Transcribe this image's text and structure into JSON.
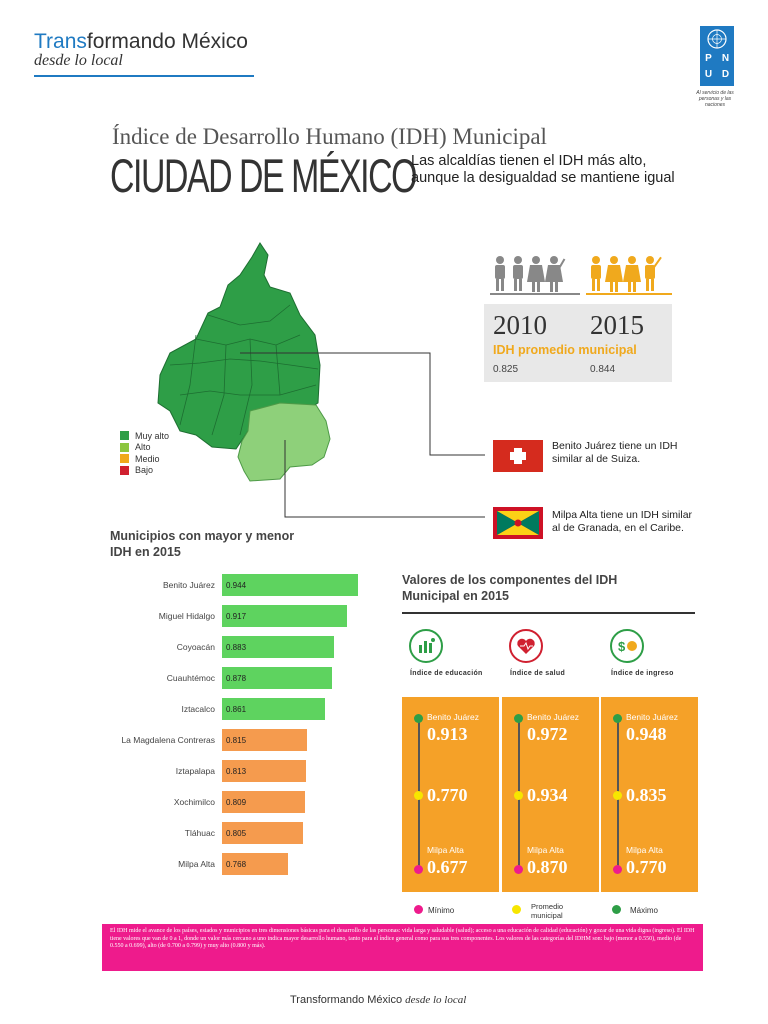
{
  "header": {
    "brand_prefix": "Trans",
    "brand_rest": "formando México",
    "brand_sub": "desde lo local",
    "pnud_letters": [
      "P",
      "N",
      "U",
      "D"
    ],
    "pnud_tagline": "Al servicio de las personas y las naciones"
  },
  "title": {
    "small": "Índice de Desarrollo Humano (IDH) Municipal",
    "big": "CIUDAD DE MÉXICO",
    "headline": "Las alcaldías tienen el IDH más alto, aunque la desigualdad se mantiene igual"
  },
  "legend": [
    {
      "label": "Muy alto",
      "color": "#2e9e47"
    },
    {
      "label": "Alto",
      "color": "#8cc63f"
    },
    {
      "label": "Medio",
      "color": "#f0a91d"
    },
    {
      "label": "Bajo",
      "color": "#d02030"
    }
  ],
  "idh_summary": {
    "year_2010": "2010",
    "year_2015": "2015",
    "label": "IDH promedio municipal",
    "value_2010": "0.825",
    "value_2015": "0.844"
  },
  "flags": {
    "suiza_note": "Benito Juárez tiene un IDH similar al de Suiza.",
    "granada_note": "Milpa Alta tiene un IDH similar al de Granada, en el Caribe."
  },
  "municipios": {
    "title": "Municipios con mayor y menor IDH en 2015",
    "rows": [
      {
        "name": "Benito Juárez",
        "value": "0.944",
        "color": "#5ed35f"
      },
      {
        "name": "Miguel Hidalgo",
        "value": "0.917",
        "color": "#5ed35f"
      },
      {
        "name": "Coyoacán",
        "value": "0.883",
        "color": "#5ed35f"
      },
      {
        "name": "Cuauhtémoc",
        "value": "0.878",
        "color": "#5ed35f"
      },
      {
        "name": "Iztacalco",
        "value": "0.861",
        "color": "#5ed35f"
      },
      {
        "name": "La Magdalena Contreras",
        "value": "0.815",
        "color": "#f59b4e"
      },
      {
        "name": "Iztapalapa",
        "value": "0.813",
        "color": "#f59b4e"
      },
      {
        "name": "Xochimilco",
        "value": "0.809",
        "color": "#f59b4e"
      },
      {
        "name": "Tláhuac",
        "value": "0.805",
        "color": "#f59b4e"
      },
      {
        "name": "Milpa Alta",
        "value": "0.768",
        "color": "#f59b4e"
      }
    ]
  },
  "componentes": {
    "title": "Valores de los componentes del IDH Municipal en 2015",
    "columns": [
      {
        "head": "Índice de educación",
        "icon": "education-icon",
        "max_name": "Benito Juárez",
        "max": "0.913",
        "avg": "0.770",
        "min_name": "Milpa Alta",
        "min": "0.677"
      },
      {
        "head": "Índice de salud",
        "icon": "health-icon",
        "max_name": "Benito Juárez",
        "max": "0.972",
        "avg": "0.934",
        "min_name": "Milpa Alta",
        "min": "0.870"
      },
      {
        "head": "Índice de ingreso",
        "icon": "income-icon",
        "max_name": "Benito Juárez",
        "max": "0.948",
        "avg": "0.835",
        "min_name": "Milpa Alta",
        "min": "0.770"
      }
    ],
    "key": {
      "min": "Mínimo",
      "avg_line1": "Promedio",
      "avg_line2": "municipal",
      "max": "Máximo"
    },
    "key_colors": {
      "min": "#ee1b8c",
      "avg": "#f7e600",
      "max": "#2e9e47"
    }
  },
  "footnote": "El IDH mide el avance de los países, estados y municipios en tres dimensiones básicas para el desarrollo de las personas: vida larga y saludable (salud); acceso a una educación de calidad (educación) y gozar de una vida digna (ingreso). El IDH tiene valores que van de 0 a 1, donde un valor más cercano a uno indica mayor desarrollo humano, tanto para el índice general como para sus tres componentes. Los valores de las categorías del IDHM son: bajo (menor a 0.550), medio (de 0.550 a 0.699), alto (de 0.700 a 0.799) y muy alto (0.800 y más).",
  "footer": {
    "brand": "Transformando México",
    "sub": "desde lo local"
  }
}
